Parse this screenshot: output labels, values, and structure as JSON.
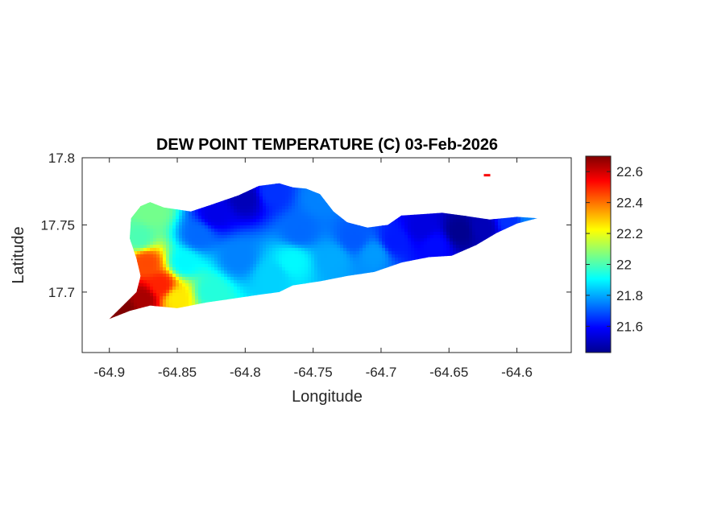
{
  "chart_data": {
    "type": "heatmap",
    "title": "DEW POINT TEMPERATURE (C) 03-Feb-2026",
    "xlabel": "Longitude",
    "ylabel": "Latitude",
    "xlim": [
      -64.92,
      -64.56
    ],
    "ylim": [
      17.655,
      17.8
    ],
    "xticks": [
      -64.9,
      -64.85,
      -64.8,
      -64.75,
      -64.7,
      -64.65,
      -64.6
    ],
    "xtick_labels": [
      "-64.9",
      "-64.85",
      "-64.8",
      "-64.75",
      "-64.7",
      "-64.65",
      "-64.6"
    ],
    "yticks": [
      17.7,
      17.75,
      17.8
    ],
    "ytick_labels": [
      "17.7",
      "17.75",
      "17.8"
    ],
    "colorbar": {
      "colormap": "jet",
      "limits": [
        21.43,
        22.7
      ],
      "ticks": [
        21.6,
        21.8,
        22,
        22.2,
        22.4,
        22.6
      ],
      "tick_labels": [
        "21.6",
        "21.8",
        "22",
        "22.2",
        "22.4",
        "22.6"
      ]
    },
    "grid": false,
    "island_outline": [
      [
        -64.9,
        17.68
      ],
      [
        -64.89,
        17.69
      ],
      [
        -64.88,
        17.7
      ],
      [
        -64.877,
        17.712
      ],
      [
        -64.88,
        17.725
      ],
      [
        -64.885,
        17.74
      ],
      [
        -64.884,
        17.755
      ],
      [
        -64.877,
        17.764
      ],
      [
        -64.87,
        17.767
      ],
      [
        -64.86,
        17.763
      ],
      [
        -64.84,
        17.76
      ],
      [
        -64.825,
        17.765
      ],
      [
        -64.805,
        17.772
      ],
      [
        -64.79,
        17.779
      ],
      [
        -64.775,
        17.781
      ],
      [
        -64.765,
        17.778
      ],
      [
        -64.755,
        17.777
      ],
      [
        -64.745,
        17.773
      ],
      [
        -64.735,
        17.76
      ],
      [
        -64.725,
        17.752
      ],
      [
        -64.71,
        17.748
      ],
      [
        -64.695,
        17.75
      ],
      [
        -64.685,
        17.757
      ],
      [
        -64.67,
        17.758
      ],
      [
        -64.655,
        17.759
      ],
      [
        -64.64,
        17.757
      ],
      [
        -64.62,
        17.754
      ],
      [
        -64.6,
        17.756
      ],
      [
        -64.585,
        17.755
      ],
      [
        -64.6,
        17.751
      ],
      [
        -64.615,
        17.744
      ],
      [
        -64.63,
        17.735
      ],
      [
        -64.648,
        17.727
      ],
      [
        -64.665,
        17.726
      ],
      [
        -64.685,
        17.722
      ],
      [
        -64.705,
        17.715
      ],
      [
        -64.725,
        17.712
      ],
      [
        -64.745,
        17.708
      ],
      [
        -64.765,
        17.705
      ],
      [
        -64.775,
        17.7
      ],
      [
        -64.79,
        17.698
      ],
      [
        -64.81,
        17.695
      ],
      [
        -64.83,
        17.692
      ],
      [
        -64.85,
        17.688
      ],
      [
        -64.87,
        17.69
      ],
      [
        -64.885,
        17.686
      ]
    ],
    "stations": [
      {
        "lon": -64.89,
        "lat": 17.688,
        "value": 22.7
      },
      {
        "lon": -64.875,
        "lat": 17.695,
        "value": 22.65
      },
      {
        "lon": -64.862,
        "lat": 17.705,
        "value": 22.5
      },
      {
        "lon": -64.873,
        "lat": 17.722,
        "value": 22.45
      },
      {
        "lon": -64.85,
        "lat": 17.695,
        "value": 22.25
      },
      {
        "lon": -64.878,
        "lat": 17.74,
        "value": 22.0
      },
      {
        "lon": -64.868,
        "lat": 17.76,
        "value": 22.05
      },
      {
        "lon": -64.845,
        "lat": 17.722,
        "value": 21.9
      },
      {
        "lon": -64.825,
        "lat": 17.7,
        "value": 21.95
      },
      {
        "lon": -64.835,
        "lat": 17.742,
        "value": 21.72
      },
      {
        "lon": -64.822,
        "lat": 17.758,
        "value": 21.56
      },
      {
        "lon": -64.8,
        "lat": 17.77,
        "value": 21.5
      },
      {
        "lon": -64.78,
        "lat": 17.775,
        "value": 21.65
      },
      {
        "lon": -64.805,
        "lat": 17.725,
        "value": 21.75
      },
      {
        "lon": -64.78,
        "lat": 17.712,
        "value": 21.85
      },
      {
        "lon": -64.765,
        "lat": 17.723,
        "value": 21.9
      },
      {
        "lon": -64.76,
        "lat": 17.745,
        "value": 21.72
      },
      {
        "lon": -64.745,
        "lat": 17.77,
        "value": 21.75
      },
      {
        "lon": -64.735,
        "lat": 17.725,
        "value": 21.8
      },
      {
        "lon": -64.72,
        "lat": 17.74,
        "value": 21.7
      },
      {
        "lon": -64.705,
        "lat": 17.728,
        "value": 21.78
      },
      {
        "lon": -64.69,
        "lat": 17.738,
        "value": 21.62
      },
      {
        "lon": -64.67,
        "lat": 17.748,
        "value": 21.55
      },
      {
        "lon": -64.66,
        "lat": 17.735,
        "value": 21.6
      },
      {
        "lon": -64.642,
        "lat": 17.745,
        "value": 21.45
      },
      {
        "lon": -64.625,
        "lat": 17.748,
        "value": 21.5
      },
      {
        "lon": -64.605,
        "lat": 17.753,
        "value": 21.65
      },
      {
        "lon": -64.59,
        "lat": 17.755,
        "value": 21.75
      }
    ],
    "extra_points": [
      {
        "lon": -64.622,
        "lat": 17.787,
        "value": 22.55
      }
    ]
  }
}
